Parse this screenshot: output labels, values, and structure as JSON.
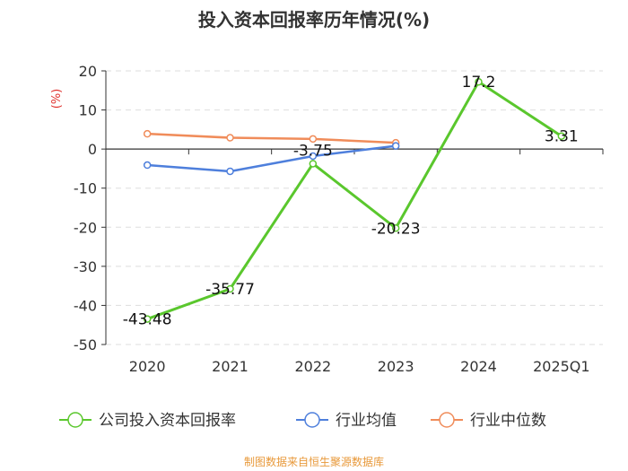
{
  "title": "投入资本回报率历年情况(%)",
  "footer": "制图数据来自恒生聚源数据库",
  "chart_data": {
    "type": "line",
    "categories": [
      "2020",
      "2021",
      "2022",
      "2023",
      "2024",
      "2025Q1"
    ],
    "ylabel": "(%)",
    "ylim": [
      -50,
      20
    ],
    "yticks": [
      20,
      10,
      0,
      -10,
      -20,
      -30,
      -40,
      -50
    ],
    "grid": true,
    "legend_position": "bottom",
    "series": [
      {
        "name": "公司投入资本回报率",
        "color": "#5ac72d",
        "values": [
          -43.48,
          -35.77,
          -3.75,
          -20.23,
          17.2,
          3.31
        ],
        "labels": [
          "-43.48",
          "-35.77",
          "-3.75",
          "-20.23",
          "17.2",
          "3.31"
        ]
      },
      {
        "name": "行业均值",
        "color": "#4e7fdc",
        "values": [
          -4.1,
          -5.7,
          -1.8,
          0.8,
          null,
          null
        ]
      },
      {
        "name": "行业中位数",
        "color": "#f08c5a",
        "values": [
          3.9,
          2.9,
          2.6,
          1.6,
          null,
          null
        ]
      }
    ]
  }
}
